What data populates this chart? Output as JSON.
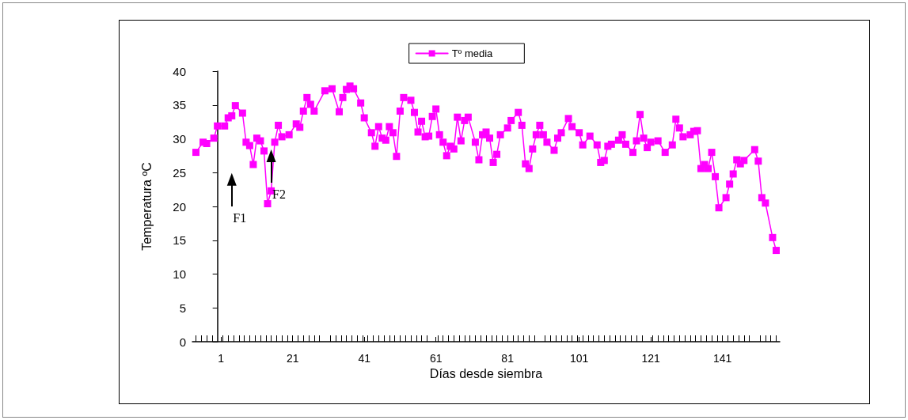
{
  "chart_data": {
    "type": "line",
    "xlabel": "Días desde siembra",
    "ylabel": "Temperatura ºC",
    "xlim": [
      -7,
      157
    ],
    "xticks": [
      1,
      21,
      41,
      61,
      81,
      101,
      121,
      141
    ],
    "ylim": [
      0,
      40
    ],
    "yticks": [
      0,
      5,
      10,
      15,
      20,
      25,
      30,
      35,
      40
    ],
    "grid": false,
    "legend": "top",
    "marker": "square",
    "line_style": "solid",
    "annotations": [
      {
        "text": "F1",
        "x": 4,
        "y": 24
      },
      {
        "text": "F2",
        "x": 15,
        "y": 27.5
      }
    ],
    "series": [
      {
        "name": "Tº media",
        "color": "#ff00ff",
        "x": [
          -6,
          -4,
          -3,
          -1,
          0,
          2,
          3,
          4,
          5,
          7,
          8,
          9,
          10,
          11,
          12,
          13,
          14,
          15,
          16,
          17,
          18,
          20,
          22,
          23,
          24,
          25,
          26,
          27,
          30,
          32,
          34,
          35,
          36,
          37,
          38,
          40,
          41,
          43,
          44,
          45,
          46,
          47,
          48,
          49,
          50,
          51,
          52,
          54,
          55,
          56,
          57,
          58,
          59,
          60,
          61,
          62,
          63,
          64,
          65,
          66,
          67,
          68,
          69,
          70,
          72,
          73,
          74,
          75,
          76,
          77,
          78,
          79,
          81,
          82,
          84,
          85,
          86,
          87,
          88,
          89,
          90,
          91,
          92,
          94,
          95,
          96,
          98,
          99,
          101,
          102,
          104,
          106,
          107,
          108,
          109,
          110,
          112,
          113,
          114,
          116,
          117,
          118,
          119,
          120,
          121,
          123,
          125,
          127,
          128,
          129,
          130,
          132,
          133,
          134,
          135,
          136,
          137,
          138,
          139,
          140,
          142,
          143,
          144,
          145,
          146,
          147,
          150,
          151,
          152,
          153,
          155,
          156
        ],
        "values": [
          28.0,
          29.5,
          29.3,
          30.1,
          31.9,
          31.9,
          33.1,
          33.4,
          34.9,
          33.8,
          29.5,
          29.0,
          26.2,
          30.1,
          29.7,
          28.2,
          20.4,
          22.3,
          29.5,
          32.0,
          30.3,
          30.6,
          32.2,
          31.7,
          34.1,
          36.1,
          35.1,
          34.1,
          37.1,
          37.4,
          34.0,
          36.1,
          37.3,
          37.8,
          37.4,
          35.3,
          33.1,
          30.9,
          28.9,
          31.8,
          30.1,
          29.8,
          31.8,
          30.9,
          27.4,
          34.1,
          36.1,
          35.7,
          33.9,
          31.0,
          32.6,
          30.3,
          30.4,
          33.3,
          34.4,
          30.6,
          29.5,
          27.5,
          28.9,
          28.5,
          33.2,
          29.7,
          32.7,
          33.2,
          29.5,
          26.9,
          30.6,
          31.0,
          30.1,
          26.5,
          27.7,
          30.6,
          31.6,
          32.7,
          33.9,
          32.0,
          26.3,
          25.6,
          28.5,
          30.6,
          32.0,
          30.6,
          29.5,
          28.3,
          30.1,
          30.9,
          33.0,
          31.8,
          30.9,
          29.1,
          30.4,
          29.1,
          26.5,
          26.8,
          28.9,
          29.2,
          29.8,
          30.6,
          29.2,
          28.0,
          29.7,
          33.6,
          30.1,
          28.7,
          29.5,
          29.7,
          28.0,
          29.1,
          32.9,
          31.6,
          30.3,
          30.6,
          31.1,
          31.2,
          25.6,
          26.2,
          25.6,
          28.0,
          24.4,
          19.8,
          21.3,
          23.3,
          24.8,
          26.9,
          26.3,
          26.8,
          28.4,
          26.7,
          21.3,
          20.5,
          15.4,
          13.5
        ]
      }
    ]
  }
}
